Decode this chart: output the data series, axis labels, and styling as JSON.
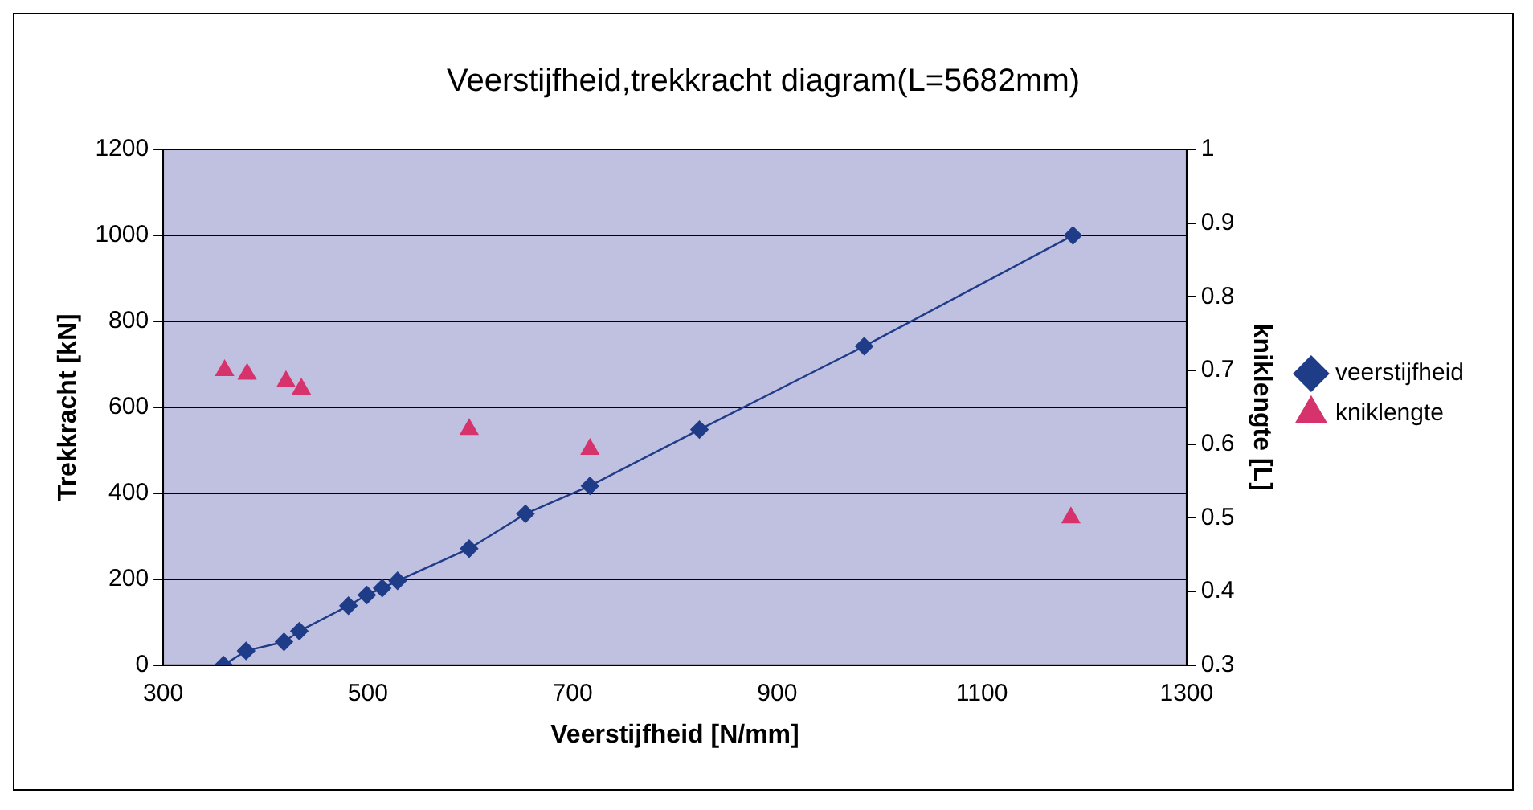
{
  "chart_data": {
    "type": "line",
    "title": "Veerstijfheid,trekkracht diagram(L=5682mm)",
    "xlabel": "Veerstijfheid [N/mm]",
    "ylabel": "Trekkracht [kN]",
    "y2label": "kniklengte [L]",
    "xlim": [
      300,
      1300
    ],
    "xticks": [
      300,
      500,
      700,
      900,
      1100,
      1300
    ],
    "ylim": [
      0,
      1200
    ],
    "yticks": [
      0,
      200,
      400,
      600,
      800,
      1000,
      1200
    ],
    "y2lim": [
      0.3,
      1
    ],
    "y2ticks": [
      0.3,
      0.4,
      0.5,
      0.6,
      0.7,
      0.8,
      0.9,
      1
    ],
    "grid": "y",
    "legend": "right",
    "series": [
      {
        "name": "veerstijfheid",
        "marker": "diamond",
        "color": "#1f3c88",
        "x": [
          359,
          381,
          418,
          433,
          481,
          499,
          514,
          529,
          599,
          654,
          717,
          824,
          985,
          1189
        ],
        "values": [
          0,
          33,
          54,
          79,
          138,
          163,
          179,
          196,
          271,
          352,
          417,
          548,
          742,
          1000
        ]
      },
      {
        "name": "kniklengte",
        "type": "scatter",
        "marker": "triangle",
        "axis": "y2",
        "color": "#d6336c",
        "x": [
          360,
          382,
          420,
          435,
          599,
          717,
          1187
        ],
        "values": [
          0.7,
          0.695,
          0.685,
          0.675,
          0.62,
          0.593,
          0.5
        ]
      }
    ]
  }
}
